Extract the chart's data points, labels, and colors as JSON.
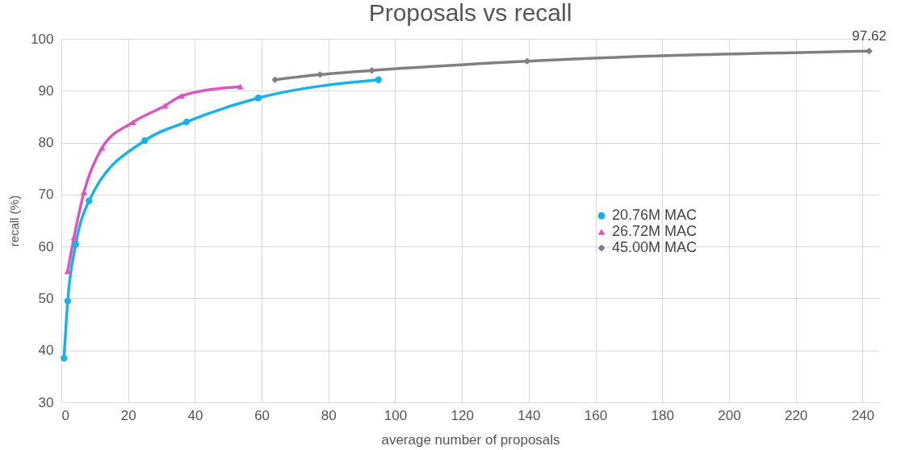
{
  "chart_data": {
    "type": "line",
    "title": "Proposals vs recall",
    "xlabel": "average number of proposals",
    "ylabel": "recall (%)",
    "xlim": [
      0,
      245
    ],
    "xticks": [
      0,
      20,
      40,
      60,
      80,
      100,
      120,
      140,
      160,
      180,
      200,
      220,
      240
    ],
    "ylim": [
      30,
      100
    ],
    "yticks": [
      30,
      40,
      50,
      60,
      70,
      80,
      90,
      100
    ],
    "grid": true,
    "legend": "right",
    "series": [
      {
        "name": "20.76M MAC",
        "color": "#1ab0e8",
        "marker": "circle",
        "x": [
          0.8,
          1.9,
          4.3,
          8.3,
          25,
          37.5,
          59,
          95
        ],
        "values": [
          38.5,
          49.5,
          60.4,
          68.8,
          80.4,
          84,
          88.6,
          92.1
        ]
      },
      {
        "name": "26.72M MAC",
        "color": "#d957c0",
        "marker": "triangle",
        "x": [
          1.9,
          3.8,
          6.8,
          12.2,
          21.4,
          31,
          36,
          53.6
        ],
        "values": [
          55.3,
          61.8,
          70.5,
          79,
          83.9,
          87.1,
          89,
          90.8
        ]
      },
      {
        "name": "45.00M MAC",
        "color": "#808080",
        "marker": "diamond",
        "x": [
          64,
          77.5,
          93,
          139.5,
          242
        ],
        "values": [
          92.1,
          93.1,
          93.9,
          95.7,
          97.62
        ]
      }
    ],
    "annotations": [
      {
        "text": "97.62",
        "x": 242,
        "y": 97.62
      }
    ]
  }
}
